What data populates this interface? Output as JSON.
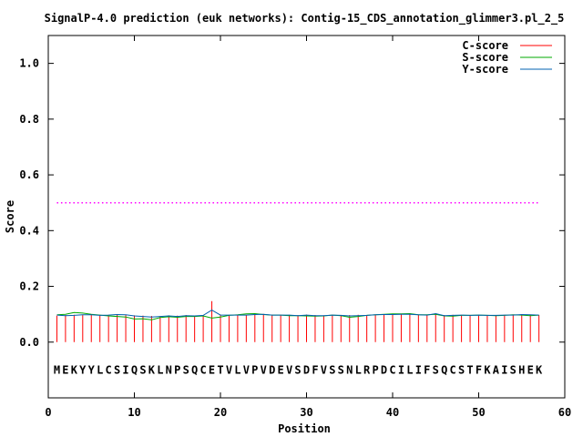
{
  "chart_data": {
    "type": "line",
    "title": "SignalP-4.0 prediction (euk networks): Contig-15_CDS_annotation_glimmer3.pl_2_5",
    "xlabel": "Position",
    "ylabel": "Score",
    "xlim": [
      0,
      60
    ],
    "ylim": [
      -0.2,
      1.1
    ],
    "xticks": [
      0,
      10,
      20,
      30,
      40,
      50,
      60
    ],
    "yticks": [
      0.0,
      0.2,
      0.4,
      0.6,
      0.8,
      1.0
    ],
    "xtick_labels": [
      "0",
      "10",
      "20",
      "30",
      "40",
      "50",
      "60"
    ],
    "ytick_labels": [
      "0.0",
      "0.2",
      "0.4",
      "0.6",
      "0.8",
      "1.0"
    ],
    "grid": false,
    "legend_position": "top-right",
    "threshold": {
      "value": 0.5,
      "color": "#ff00ff",
      "style": "dotted",
      "x_range": [
        1,
        57
      ]
    },
    "sequence": [
      "M",
      "E",
      "K",
      "Y",
      "Y",
      "L",
      "C",
      "S",
      "I",
      "Q",
      "S",
      "K",
      "L",
      "N",
      "P",
      "S",
      "Q",
      "C",
      "E",
      "T",
      "V",
      "L",
      "V",
      "P",
      "V",
      "D",
      "E",
      "V",
      "S",
      "D",
      "F",
      "V",
      "S",
      "S",
      "N",
      "L",
      "R",
      "P",
      "D",
      "C",
      "I",
      "L",
      "I",
      "F",
      "S",
      "Q",
      "C",
      "S",
      "T",
      "F",
      "K",
      "A",
      "I",
      "S",
      "H",
      "E",
      "K"
    ],
    "sequence_y": -0.1,
    "x": [
      1,
      2,
      3,
      4,
      5,
      6,
      7,
      8,
      9,
      10,
      11,
      12,
      13,
      14,
      15,
      16,
      17,
      18,
      19,
      20,
      21,
      22,
      23,
      24,
      25,
      26,
      27,
      28,
      29,
      30,
      31,
      32,
      33,
      34,
      35,
      36,
      37,
      38,
      39,
      40,
      41,
      42,
      43,
      44,
      45,
      46,
      47,
      48,
      49,
      50,
      51,
      52,
      53,
      54,
      55,
      56,
      57
    ],
    "series": [
      {
        "name": "C-score",
        "style": "impulses",
        "color": "#ff0000",
        "values": [
          0.095,
          0.097,
          0.098,
          0.097,
          0.099,
          0.096,
          0.098,
          0.1,
          0.097,
          0.096,
          0.095,
          0.094,
          0.093,
          0.096,
          0.095,
          0.097,
          0.094,
          0.095,
          0.147,
          0.098,
          0.096,
          0.097,
          0.097,
          0.098,
          0.101,
          0.097,
          0.097,
          0.098,
          0.096,
          0.099,
          0.097,
          0.096,
          0.098,
          0.097,
          0.097,
          0.098,
          0.096,
          0.097,
          0.099,
          0.098,
          0.1,
          0.099,
          0.098,
          0.097,
          0.103,
          0.097,
          0.098,
          0.097,
          0.097,
          0.098,
          0.096,
          0.097,
          0.098,
          0.097,
          0.1,
          0.099,
          0.097
        ]
      },
      {
        "name": "S-score",
        "style": "lines",
        "color": "#00aa00",
        "values": [
          0.098,
          0.1,
          0.106,
          0.104,
          0.1,
          0.097,
          0.094,
          0.092,
          0.09,
          0.083,
          0.084,
          0.08,
          0.088,
          0.091,
          0.089,
          0.092,
          0.092,
          0.094,
          0.086,
          0.09,
          0.096,
          0.098,
          0.101,
          0.102,
          0.099,
          0.097,
          0.097,
          0.095,
          0.095,
          0.094,
          0.093,
          0.094,
          0.097,
          0.095,
          0.089,
          0.092,
          0.096,
          0.098,
          0.1,
          0.101,
          0.101,
          0.102,
          0.098,
          0.098,
          0.1,
          0.094,
          0.093,
          0.096,
          0.096,
          0.097,
          0.096,
          0.095,
          0.096,
          0.098,
          0.097,
          0.095,
          0.097
        ]
      },
      {
        "name": "Y-score",
        "style": "lines",
        "color": "#0060b0",
        "values": [
          0.097,
          0.095,
          0.096,
          0.098,
          0.098,
          0.096,
          0.097,
          0.099,
          0.098,
          0.094,
          0.092,
          0.09,
          0.092,
          0.094,
          0.092,
          0.095,
          0.094,
          0.096,
          0.115,
          0.097,
          0.097,
          0.097,
          0.097,
          0.099,
          0.1,
          0.097,
          0.097,
          0.097,
          0.095,
          0.097,
          0.095,
          0.095,
          0.097,
          0.096,
          0.094,
          0.095,
          0.096,
          0.098,
          0.099,
          0.099,
          0.1,
          0.1,
          0.098,
          0.097,
          0.102,
          0.095,
          0.096,
          0.097,
          0.096,
          0.097,
          0.096,
          0.096,
          0.097,
          0.097,
          0.099,
          0.098,
          0.097
        ]
      }
    ]
  }
}
